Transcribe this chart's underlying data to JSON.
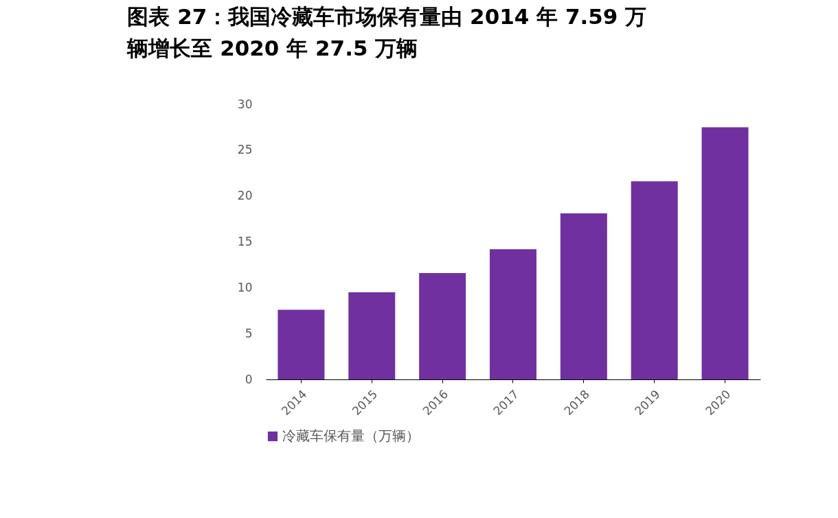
{
  "chart_data": {
    "type": "bar",
    "title": "图表 27：我国冷藏车市场保有量由 2014 年 7.59 万辆增长至 2020 年 27.5 万辆",
    "categories": [
      "2014",
      "2015",
      "2016",
      "2017",
      "2018",
      "2019",
      "2020"
    ],
    "series": [
      {
        "name": "冷藏车保有量（万辆）",
        "color": "#7030a0",
        "values": [
          7.59,
          9.5,
          11.6,
          14.2,
          18.1,
          21.6,
          27.5
        ]
      }
    ],
    "ylim": [
      0,
      30
    ],
    "yticks": [
      0,
      5,
      10,
      15,
      20,
      25,
      30
    ],
    "grid": false,
    "legend": "bottom"
  }
}
